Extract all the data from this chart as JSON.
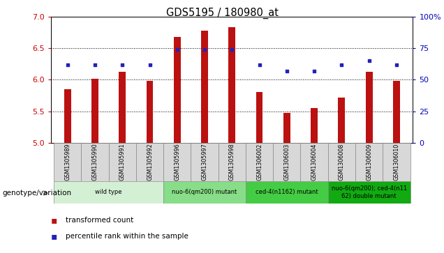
{
  "title": "GDS5195 / 180980_at",
  "samples": [
    "GSM1305989",
    "GSM1305990",
    "GSM1305991",
    "GSM1305992",
    "GSM1305996",
    "GSM1305997",
    "GSM1305998",
    "GSM1306002",
    "GSM1306003",
    "GSM1306004",
    "GSM1306008",
    "GSM1306009",
    "GSM1306010"
  ],
  "bar_values": [
    5.85,
    6.02,
    6.12,
    5.98,
    6.68,
    6.78,
    6.83,
    5.8,
    5.47,
    5.55,
    5.72,
    6.12,
    5.98
  ],
  "percentile_values": [
    62,
    62,
    62,
    62,
    74,
    74,
    74,
    62,
    57,
    57,
    62,
    65,
    62
  ],
  "bar_bottom": 5.0,
  "ylim": [
    5.0,
    7.0
  ],
  "ylim_right": [
    0,
    100
  ],
  "yticks_left": [
    5.0,
    5.5,
    6.0,
    6.5,
    7.0
  ],
  "yticks_right": [
    0,
    25,
    50,
    75,
    100
  ],
  "bar_color": "#bb1111",
  "percentile_color": "#2222bb",
  "grid_linestyle": "dotted",
  "groups": [
    {
      "label": "wild type",
      "indices": [
        0,
        1,
        2,
        3
      ],
      "color": "#d4f0d4"
    },
    {
      "label": "nuo-6(qm200) mutant",
      "indices": [
        4,
        5,
        6
      ],
      "color": "#88dd88"
    },
    {
      "label": "ced-4(n1162) mutant",
      "indices": [
        7,
        8,
        9
      ],
      "color": "#44cc44"
    },
    {
      "label": "nuo-6(qm200); ced-4(n11\n62) double mutant",
      "indices": [
        10,
        11,
        12
      ],
      "color": "#11aa11"
    }
  ],
  "bar_width": 0.25,
  "axis_label_color_left": "#cc0000",
  "axis_label_color_right": "#0000bb",
  "legend_items": [
    {
      "label": "transformed count",
      "color": "#bb1111",
      "marker": "s"
    },
    {
      "label": "percentile rank within the sample",
      "color": "#2222bb",
      "marker": "s"
    }
  ],
  "genotype_label": "genotype/variation",
  "cell_color": "#d8d8d8",
  "fig_bg": "#ffffff"
}
